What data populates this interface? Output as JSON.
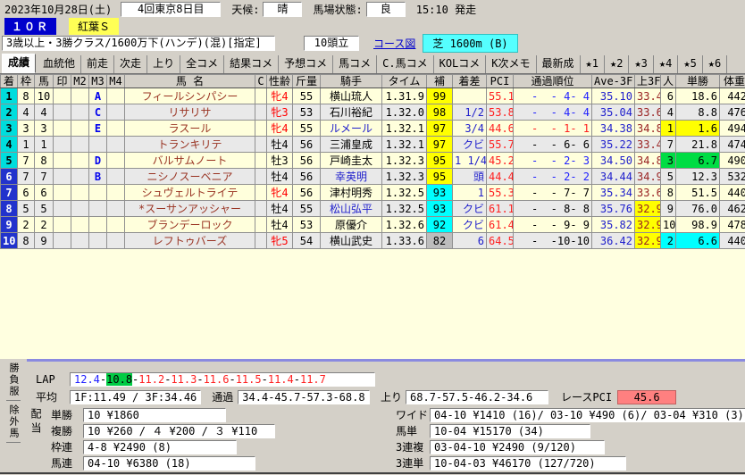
{
  "header": {
    "date": "2023年10月28日(土)",
    "meeting": "4回東京8日目",
    "weather_label": "天候:",
    "weather": "晴",
    "track_label": "馬場状態:",
    "track": "良",
    "start_time": "15:10 発走",
    "race_no": "１０Ｒ",
    "race_name": "紅葉Ｓ",
    "conditions": "3歳以上・3勝クラス/1600万下(ハンデ)(混)[指定]",
    "field_size": "10頭立",
    "course_link": "コース図",
    "course": "芝 1600m (B)"
  },
  "tabs": {
    "items": [
      {
        "label": "成績",
        "active": true
      },
      {
        "label": "血統他"
      },
      {
        "label": "前走"
      },
      {
        "label": "次走"
      },
      {
        "label": "上り"
      },
      {
        "label": "全コメ"
      },
      {
        "label": "結果コメ"
      },
      {
        "label": "予想コメ"
      },
      {
        "label": "馬コメ"
      },
      {
        "label": "C.馬コメ"
      },
      {
        "label": "KOLコメ"
      },
      {
        "label": "K次メモ"
      },
      {
        "label": "最新成"
      },
      {
        "label": "★1"
      },
      {
        "label": "★2"
      },
      {
        "label": "★3"
      },
      {
        "label": "★4"
      },
      {
        "label": "★5"
      },
      {
        "label": "★6"
      }
    ]
  },
  "table": {
    "headers": [
      "着",
      "枠",
      "馬",
      "印",
      "M2",
      "M3",
      "M4",
      "馬 名",
      "C",
      "性齢",
      "斤量",
      "騎手",
      "タイム",
      "補",
      "着差",
      "PCI",
      "通過順位",
      "Ave-3F",
      "上3F",
      "人",
      "単勝",
      "体重"
    ],
    "rows": [
      {
        "fin": "1",
        "waku": "8",
        "uma": "10",
        "m2": "",
        "m3": "A",
        "m4": "",
        "name": "フィールシンパシー",
        "c": "",
        "sex": "牝4",
        "sexRed": true,
        "kg": "55",
        "jockey": "横山琉人",
        "jockeyBlue": false,
        "time": "1.31.9",
        "hosei": "99",
        "hoseiBg": "yellow",
        "margin": "",
        "pci": "55.1*",
        "pass": "-  - 4- 4",
        "passColor": "blue",
        "ave3f": "35.10",
        "last3f": "33.4",
        "last3fHl": false,
        "pop": "6",
        "popHl": "",
        "odds": "18.6",
        "weight": "442"
      },
      {
        "fin": "2",
        "waku": "4",
        "uma": "4",
        "m2": "",
        "m3": "C",
        "m4": "",
        "name": "リサリサ",
        "c": "",
        "sex": "牝3",
        "sexRed": true,
        "kg": "53",
        "jockey": "石川裕紀",
        "jockeyBlue": false,
        "time": "1.32.0",
        "hosei": "98",
        "hoseiBg": "yellow",
        "margin": "1/2",
        "pci": "53.8*",
        "pass": "-  - 4- 4",
        "passColor": "blue",
        "ave3f": "35.04",
        "last3f": "33.6",
        "last3fHl": false,
        "pop": "4",
        "popHl": "",
        "odds": "8.8",
        "weight": "476"
      },
      {
        "fin": "3",
        "waku": "3",
        "uma": "3",
        "m2": "",
        "m3": "E",
        "m4": "",
        "name": "ラスール",
        "c": "",
        "sex": "牝4",
        "sexRed": true,
        "kg": "55",
        "jockey": "ルメール",
        "jockeyBlue": true,
        "time": "1.32.1",
        "hosei": "97",
        "hoseiBg": "yellow",
        "margin": "3/4",
        "pci": "44.6*",
        "pass": "-  - 1- 1",
        "passColor": "red",
        "ave3f": "34.38",
        "last3f": "34.8",
        "last3fHl": false,
        "pop": "1",
        "popHl": "yellow",
        "odds": "1.6",
        "weight": "494"
      },
      {
        "fin": "4",
        "waku": "1",
        "uma": "1",
        "m2": "",
        "m3": "",
        "m4": "",
        "name": "トランキリテ",
        "c": "",
        "sex": "牡4",
        "sexRed": false,
        "kg": "56",
        "jockey": "三浦皇成",
        "jockeyBlue": false,
        "time": "1.32.1",
        "hosei": "97",
        "hoseiBg": "yellow",
        "margin": "クビ",
        "pci": "55.7*",
        "pass": "-  - 6- 6",
        "passColor": "black",
        "ave3f": "35.22",
        "last3f": "33.4",
        "last3fHl": false,
        "pop": "7",
        "popHl": "",
        "odds": "21.8",
        "weight": "474"
      },
      {
        "fin": "5",
        "waku": "7",
        "uma": "8",
        "m2": "",
        "m3": "D",
        "m4": "",
        "name": "バルサムノート",
        "c": "",
        "sex": "牡3",
        "sexRed": false,
        "kg": "56",
        "jockey": "戸崎圭太",
        "jockeyBlue": false,
        "time": "1.32.3",
        "hosei": "95",
        "hoseiBg": "yellow",
        "margin": "1 1/4",
        "pci": "45.2*",
        "pass": "-  - 2- 3",
        "passColor": "blue",
        "ave3f": "34.50",
        "last3f": "34.8",
        "last3fHl": false,
        "pop": "3",
        "popHl": "green",
        "odds": "6.7",
        "weight": "490"
      },
      {
        "fin": "6",
        "waku": "7",
        "uma": "7",
        "m2": "",
        "m3": "B",
        "m4": "",
        "name": "ニシノスーベニア",
        "c": "",
        "sex": "牡4",
        "sexRed": false,
        "kg": "56",
        "jockey": "幸英明",
        "jockeyBlue": true,
        "time": "1.32.3",
        "hosei": "95",
        "hoseiBg": "yellow",
        "margin": "頭",
        "pci": "44.4*",
        "pass": "-  - 2- 2",
        "passColor": "blue",
        "ave3f": "34.44",
        "last3f": "34.9",
        "last3fHl": false,
        "pop": "5",
        "popHl": "",
        "odds": "12.3",
        "weight": "532"
      },
      {
        "fin": "7",
        "waku": "6",
        "uma": "6",
        "m2": "",
        "m3": "",
        "m4": "",
        "name": "シュヴェルトライテ",
        "c": "",
        "sex": "牝4",
        "sexRed": true,
        "kg": "56",
        "jockey": "津村明秀",
        "jockeyBlue": false,
        "time": "1.32.5",
        "hosei": "93",
        "hoseiBg": "cyan",
        "margin": "1",
        "pci": "55.3*",
        "pass": "-  - 7- 7",
        "passColor": "black",
        "ave3f": "35.34",
        "last3f": "33.6",
        "last3fHl": false,
        "pop": "8",
        "popHl": "",
        "odds": "51.5",
        "weight": "440"
      },
      {
        "fin": "8",
        "waku": "5",
        "uma": "5",
        "m2": "",
        "m3": "",
        "m4": "",
        "name": "*スーサンアッシャー",
        "c": "",
        "sex": "牡4",
        "sexRed": false,
        "kg": "55",
        "jockey": "松山弘平",
        "jockeyBlue": true,
        "time": "1.32.5",
        "hosei": "93",
        "hoseiBg": "cyan",
        "margin": "クビ",
        "pci": "61.1*",
        "pass": "-  - 8- 8",
        "passColor": "black",
        "ave3f": "35.76",
        "last3f": "32.9",
        "last3fHl": true,
        "pop": "9",
        "popHl": "",
        "odds": "76.0",
        "weight": "462"
      },
      {
        "fin": "9",
        "waku": "2",
        "uma": "2",
        "m2": "",
        "m3": "",
        "m4": "",
        "name": "ブランデーロック",
        "c": "",
        "sex": "牡4",
        "sexRed": false,
        "kg": "53",
        "jockey": "原優介",
        "jockeyBlue": false,
        "time": "1.32.6",
        "hosei": "92",
        "hoseiBg": "cyan",
        "margin": "クビ",
        "pci": "61.4*",
        "pass": "-  - 9- 9",
        "passColor": "black",
        "ave3f": "35.82",
        "last3f": "32.9",
        "last3fHl": true,
        "pop": "10",
        "popHl": "",
        "odds": "98.9",
        "weight": "478"
      },
      {
        "fin": "10",
        "waku": "8",
        "uma": "9",
        "m2": "",
        "m3": "",
        "m4": "",
        "name": "レフトゥバーズ",
        "c": "",
        "sex": "牝5",
        "sexRed": true,
        "kg": "54",
        "jockey": "横山武史",
        "jockeyBlue": false,
        "time": "1.33.6",
        "hosei": "82",
        "hoseiBg": "gray",
        "margin": "6",
        "pci": "64.5*",
        "pass": "-  -10-10",
        "passColor": "black",
        "ave3f": "36.42",
        "last3f": "32.9",
        "last3fHl": true,
        "pop": "2",
        "popHl": "cyan",
        "odds": "6.6",
        "weight": "440"
      }
    ]
  },
  "footer": {
    "side_tabs": [
      {
        "label": "勝負服"
      },
      {
        "label": "除外馬"
      }
    ],
    "payout_vertical_label": "配当",
    "lap_label": "LAP",
    "laps": [
      {
        "v": "12.4",
        "color": "blue"
      },
      {
        "v": "10.8",
        "best": true
      },
      {
        "v": "11.2",
        "color": "red"
      },
      {
        "v": "11.3",
        "color": "red"
      },
      {
        "v": "11.6",
        "color": "red"
      },
      {
        "v": "11.5",
        "color": "red"
      },
      {
        "v": "11.4",
        "color": "red"
      },
      {
        "v": "11.7",
        "color": "red"
      }
    ],
    "avg_label": "平均",
    "avg": "1F:11.49 / 3F:34.46",
    "pass_label": "通過",
    "pass": "34.4-45.7-57.3-68.8",
    "agari_label": "上り",
    "agari": "68.7-57.5-46.2-34.6",
    "race_pci_label": "レースPCI",
    "race_pci": "45.6",
    "payouts_left": [
      {
        "label": "単勝",
        "value": "10 ¥1860"
      },
      {
        "label": "複勝",
        "value": "10 ¥260 / ４ ¥200 / ３ ¥110"
      },
      {
        "label": "枠連",
        "value": "4-8 ¥2490 (8)"
      },
      {
        "label": "馬連",
        "value": "04-10 ¥6380 (18)"
      }
    ],
    "payouts_right": [
      {
        "label": "ワイド",
        "value": "04-10 ¥1410 (16)/ 03-10 ¥490 (6)/ 03-04 ¥310 (3)"
      },
      {
        "label": "馬単",
        "value": "10-04 ¥15170 (34)"
      },
      {
        "label": "3連複",
        "value": "03-04-10 ¥2490 (9/120)"
      },
      {
        "label": "3連単",
        "value": "10-04-03 ¥46170 (127/720)"
      }
    ]
  },
  "colors": {
    "window_bg": "#d4d0c8",
    "race_no_bg": "#0000cc",
    "race_name_bg": "#ffff55",
    "course_bg": "#55ffff",
    "stripe_yellow": "#ffffdc",
    "stripe_gray": "#e9e9e9",
    "fin_cyan": "#00dddd",
    "fin_blue": "#2233cc",
    "hosei_yellow": "#ffff00",
    "hosei_cyan": "#00ffff",
    "hosei_gray": "#bdbdbd",
    "hl_yellow": "#ffff00",
    "hl_green": "#00dd44",
    "hl_cyan": "#00ffff",
    "lap_best_bg": "#00cc44",
    "race_pci_bg": "#ff8080",
    "horse_name_color": "#993322",
    "pci_color": "#ff2020"
  }
}
